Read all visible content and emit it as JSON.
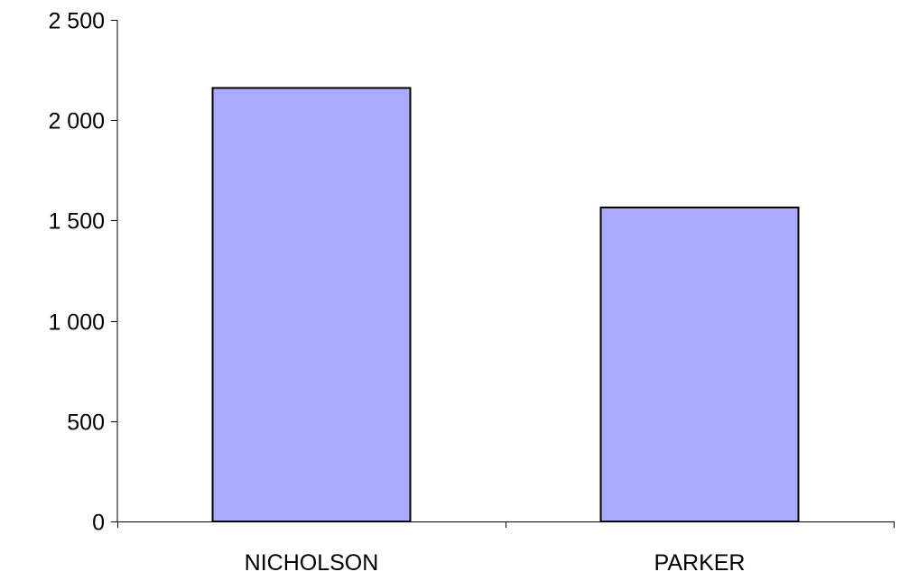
{
  "chart_data": {
    "type": "bar",
    "categories": [
      "NICHOLSON",
      "PARKER"
    ],
    "values": [
      2160,
      1565
    ],
    "title": "",
    "xlabel": "",
    "ylabel": "",
    "ylim": [
      0,
      2500
    ],
    "y_ticks": [
      0,
      500,
      1000,
      1500,
      2000,
      2500
    ],
    "y_tick_labels": [
      "0",
      "500",
      "1 000",
      "1 500",
      "2 000",
      "2 500"
    ],
    "grid": false,
    "legend": "none",
    "bar_color": "#aaaaff",
    "bar_edge_color": "#000000"
  }
}
